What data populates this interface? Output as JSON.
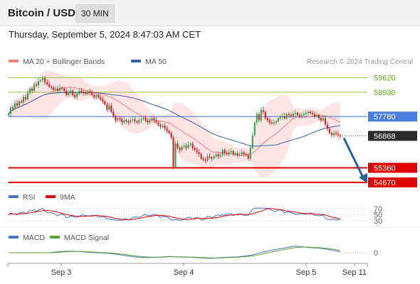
{
  "header": {
    "pair": "Bitcoin / USD",
    "timeframe": "30 MIN",
    "timestamp": "Thursday, September 5, 2024 8:47:03 AM CET"
  },
  "colors": {
    "price_line": "#4a7fe0",
    "resistance": "#8dc63f",
    "support": "#e00000",
    "up": "#2e9e4a",
    "down": "#cc2222",
    "bb_fill": "#fde0e0",
    "ma20": "#f08080",
    "ma50": "#3a5fa0",
    "rsi": "#4472c4",
    "rsi_ma": "#e00000",
    "macd": "#4472c4",
    "macd_signal": "#5aa02c",
    "arrow": "#2a5fa8"
  },
  "chart_data": [
    {
      "type": "candlestick",
      "legend": [
        {
          "name": "MA 20 + Bollinger Bands",
          "color": "#f08080"
        },
        {
          "name": "MA 50",
          "color": "#3a5fa0"
        }
      ],
      "watermark": "Research © 2024 Trading Central",
      "x_ticks": [
        "Sep 3",
        "Sep 4",
        "Sep 5",
        "Sep 11"
      ],
      "ylim": [
        54500,
        60100
      ],
      "levels": [
        {
          "value": 59620,
          "label": "59620",
          "kind": "resistance"
        },
        {
          "value": 58930,
          "label": "58930",
          "kind": "resistance"
        },
        {
          "value": 57780,
          "label": "57780",
          "kind": "pivot"
        },
        {
          "value": 56868,
          "label": "56868",
          "kind": "last"
        },
        {
          "value": 55360,
          "label": "55360",
          "kind": "support"
        },
        {
          "value": 54670,
          "label": "54670",
          "kind": "support"
        }
      ],
      "trend_arrow": {
        "from": 56868,
        "to": 54670,
        "direction": "down"
      },
      "price_path": [
        57900,
        58200,
        58150,
        58400,
        58300,
        58500,
        58450,
        58700,
        58600,
        58900,
        59100,
        59000,
        59300,
        59250,
        59450,
        59500,
        59600,
        59400,
        59300,
        59200,
        59150,
        59050,
        59100,
        59000,
        59150,
        59100,
        59000,
        58800,
        58900,
        59000,
        58800,
        58700,
        58850,
        59000,
        58950,
        58900,
        58850,
        58950,
        58900,
        58800,
        58700,
        58800,
        58700,
        58600,
        58500,
        58350,
        58100,
        58300,
        58000,
        57800,
        57600,
        57700,
        57650,
        57500,
        57600,
        57550,
        57500,
        57600,
        57650,
        57550,
        57500,
        57600,
        57650,
        57700,
        57600,
        57500,
        57600,
        57700,
        57600,
        57500,
        57400,
        57300,
        57350,
        57200,
        57100,
        57000,
        56800,
        55400,
        56500,
        56300,
        56200,
        56350,
        56400,
        56300,
        56450,
        56500,
        56300,
        56200,
        56100,
        56000,
        55800,
        55750,
        55700,
        55900,
        55850,
        55800,
        55900,
        56000,
        55900,
        55950,
        56200,
        56050,
        56000,
        56100,
        56150,
        56000,
        56050,
        55950,
        56000,
        56100,
        56000,
        55950,
        55800,
        56300,
        56900,
        57500,
        57900,
        57600,
        58100,
        58000,
        57700,
        57600,
        57500,
        57450,
        57500,
        57550,
        57700,
        57750,
        57800,
        57700,
        57900,
        57850,
        57800,
        57900,
        57950,
        57850,
        57800,
        57850,
        57900,
        57950,
        58000,
        57950,
        57900,
        57800,
        57850,
        57700,
        57600,
        57700,
        57400,
        57200,
        57000,
        56900,
        57000,
        56950,
        56900,
        56868
      ]
    },
    {
      "type": "line",
      "name_label": "RSI",
      "legend": [
        {
          "name": "RSI",
          "color": "#4472c4"
        },
        {
          "name": "9MA",
          "color": "#e00000"
        }
      ],
      "y_ticks": [
        70,
        50,
        30
      ]
    },
    {
      "type": "line",
      "legend": [
        {
          "name": "MACD",
          "color": "#4472c4"
        },
        {
          "name": "MACD Signal",
          "color": "#5aa02c"
        }
      ],
      "y_ticks": [
        0
      ]
    }
  ]
}
